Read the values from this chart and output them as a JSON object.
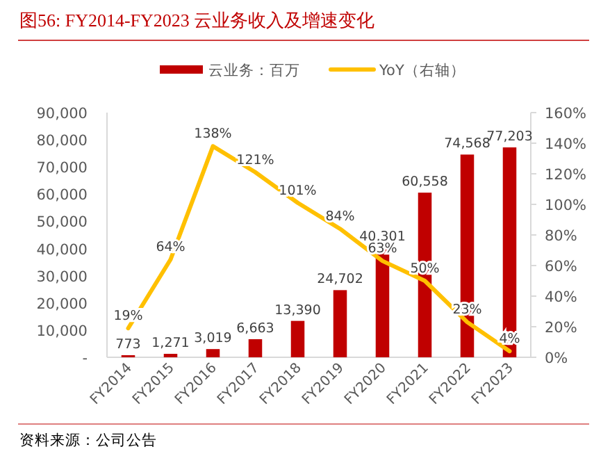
{
  "chart_data": {
    "type": "bar",
    "title": "图56:  FY2014-FY2023 云业务收入及增速变化",
    "categories": [
      "FY2014",
      "FY2015",
      "FY2016",
      "FY2017",
      "FY2018",
      "FY2019",
      "FY2020",
      "FY2021",
      "FY2022",
      "FY2023"
    ],
    "series": [
      {
        "name": "云业务：百万",
        "color": "#c00000",
        "values": [
          773,
          1271,
          3019,
          6663,
          13390,
          24702,
          40301,
          60558,
          74568,
          77203
        ],
        "value_labels": [
          "773",
          "1,271",
          "3,019",
          "6,663",
          "13,390",
          "24,702",
          "40,301",
          "60,558",
          "74,568",
          "77,203"
        ]
      },
      {
        "name": "YoY（右轴）",
        "type": "line",
        "axis": "y2",
        "color": "#ffc000",
        "values": [
          19,
          64,
          138,
          121,
          101,
          84,
          63,
          50,
          23,
          4
        ],
        "value_labels": [
          "19%",
          "64%",
          "138%",
          "121%",
          "101%",
          "84%",
          "63%",
          "50%",
          "23%",
          "4%"
        ]
      }
    ],
    "ylim": [
      0,
      90000
    ],
    "yticks": [
      {
        "value": 0,
        "label": "-"
      },
      {
        "value": 10000,
        "label": "10,000"
      },
      {
        "value": 20000,
        "label": "20,000"
      },
      {
        "value": 30000,
        "label": "30,000"
      },
      {
        "value": 40000,
        "label": "40,000"
      },
      {
        "value": 50000,
        "label": "50,000"
      },
      {
        "value": 60000,
        "label": "60,000"
      },
      {
        "value": 70000,
        "label": "70,000"
      },
      {
        "value": 80000,
        "label": "80,000"
      },
      {
        "value": 90000,
        "label": "90,000"
      }
    ],
    "y2lim": [
      0,
      160
    ],
    "y2ticks": [
      {
        "value": 0,
        "label": "0%"
      },
      {
        "value": 20,
        "label": "20%"
      },
      {
        "value": 40,
        "label": "40%"
      },
      {
        "value": 60,
        "label": "60%"
      },
      {
        "value": 80,
        "label": "80%"
      },
      {
        "value": 100,
        "label": "100%"
      },
      {
        "value": 120,
        "label": "120%"
      },
      {
        "value": 140,
        "label": "140%"
      },
      {
        "value": 160,
        "label": "160%"
      }
    ],
    "legend": "top",
    "grid": false,
    "annotations": [
      "资料来源：公司公告"
    ]
  }
}
